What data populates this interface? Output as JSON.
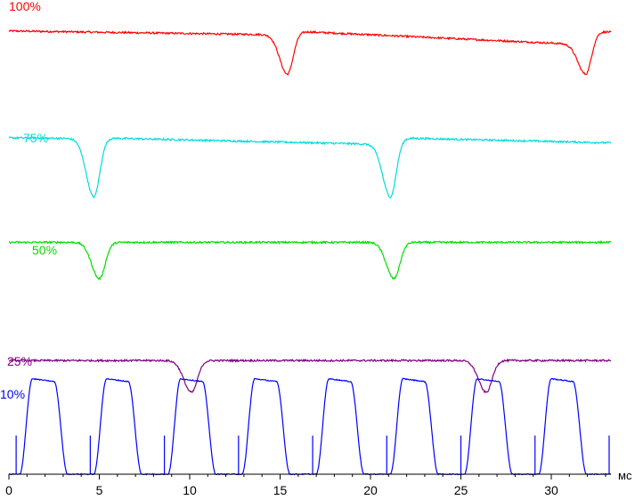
{
  "chart_data": {
    "type": "line",
    "title": "",
    "xlabel": "",
    "x_unit": "мс",
    "xlim": [
      0,
      33.3
    ],
    "x_ticks": [
      0,
      5,
      10,
      15,
      20,
      25,
      30
    ],
    "grid": false,
    "legend": "none",
    "series": [
      {
        "name": "100%",
        "color": "#ff0000",
        "shape": "slow ramp down with sharp dips once per refresh",
        "baseline_start": 0.975,
        "baseline_end": 0.945,
        "dip_centers_ms": [
          15.4,
          31.9
        ],
        "dip_min": 0.88
      },
      {
        "name": "75%",
        "color": "#00dcdc",
        "shape": "slow ramp down with sharp dips once per refresh",
        "baseline_start": 0.74,
        "baseline_end": 0.725,
        "dip_centers_ms": [
          4.7,
          21.1
        ],
        "dip_min": 0.61
      },
      {
        "name": "50%",
        "color": "#00dd00",
        "shape": "flat with dips once per refresh",
        "baseline_start": 0.51,
        "baseline_end": 0.51,
        "dip_centers_ms": [
          5.0,
          21.3
        ],
        "dip_min": 0.43
      },
      {
        "name": "25%",
        "color": "#800080",
        "shape": "flat with shallow dips once per refresh",
        "baseline_start": 0.25,
        "baseline_end": 0.25,
        "dip_centers_ms": [
          10.1,
          26.4
        ],
        "dip_min": 0.18
      },
      {
        "name": "10%",
        "color": "#0000ff",
        "shape": "PWM trapezoid pulses",
        "pulse_period_ms": 4.1,
        "pulse_first_rise_ms": 0.6,
        "pulse_high": 0.21,
        "pulse_low": 0.0
      }
    ]
  }
}
